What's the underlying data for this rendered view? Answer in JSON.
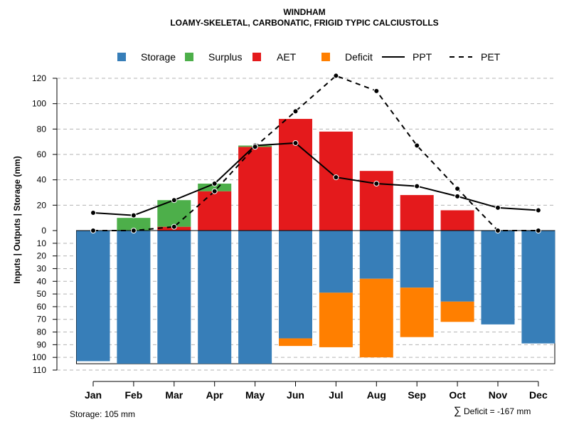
{
  "title": "WINDHAM",
  "subtitle": "LOAMY-SKELETAL, CARBONATIC, FRIGID TYPIC CALCIUSTOLLS",
  "ylabel": "Inputs | Outputs | Storage    (mm)",
  "footer_left": "Storage: 105 mm",
  "footer_right_symbol": "∑",
  "footer_right": "Deficit = -167 mm",
  "colors": {
    "storage": "#377EB8",
    "surplus": "#4DAF4A",
    "aet": "#E41A1C",
    "deficit": "#FF7F00",
    "ppt": "#000000",
    "pet": "#000000"
  },
  "legend": [
    {
      "key": "storage",
      "label": "Storage",
      "kind": "box"
    },
    {
      "key": "surplus",
      "label": "Surplus",
      "kind": "box"
    },
    {
      "key": "aet",
      "label": "AET",
      "kind": "box"
    },
    {
      "key": "deficit",
      "label": "Deficit",
      "kind": "box"
    },
    {
      "key": "ppt",
      "label": "PPT",
      "kind": "solid"
    },
    {
      "key": "pet",
      "label": "PET",
      "kind": "dashed"
    }
  ],
  "chart_data": {
    "type": "bar",
    "categories": [
      "Jan",
      "Feb",
      "Mar",
      "Apr",
      "May",
      "Jun",
      "Jul",
      "Aug",
      "Sep",
      "Oct",
      "Nov",
      "Dec"
    ],
    "upper_ticks": [
      0,
      20,
      40,
      60,
      80,
      100,
      120
    ],
    "lower_ticks": [
      0,
      10,
      20,
      30,
      40,
      50,
      60,
      70,
      80,
      90,
      100,
      110
    ],
    "upper_ylim": [
      0,
      130
    ],
    "lower_ylim": [
      0,
      110
    ],
    "storage_capacity": 105,
    "series": [
      {
        "name": "AET",
        "values": [
          0,
          0,
          3,
          31,
          66,
          88,
          78,
          47,
          28,
          16,
          0,
          0
        ]
      },
      {
        "name": "Surplus",
        "values": [
          0,
          10,
          21,
          6,
          1,
          0,
          0,
          0,
          0,
          0,
          0,
          0
        ]
      },
      {
        "name": "Storage",
        "values": [
          103,
          105,
          105,
          105,
          105,
          85,
          49,
          38,
          45,
          56,
          74,
          89
        ]
      },
      {
        "name": "Deficit",
        "values": [
          0,
          0,
          0,
          0,
          0,
          6,
          43,
          62,
          39,
          16,
          0,
          0
        ]
      },
      {
        "name": "PPT",
        "values": [
          14,
          12,
          24,
          37,
          67,
          69,
          42,
          37,
          35,
          27,
          18,
          16
        ]
      },
      {
        "name": "PET",
        "values": [
          0,
          0,
          3,
          31,
          66,
          94,
          122,
          110,
          67,
          33,
          0,
          0
        ]
      }
    ]
  }
}
